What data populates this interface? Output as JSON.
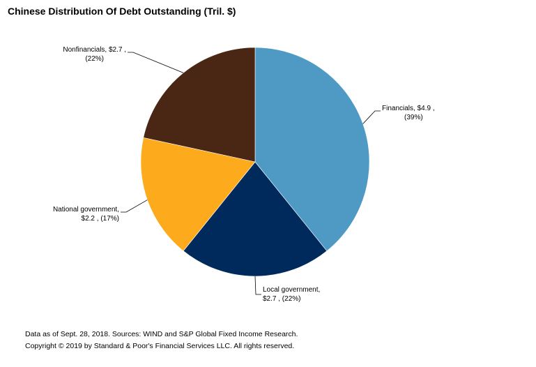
{
  "title": "Chinese Distribution Of Debt Outstanding (Tril. $)",
  "chart_data": {
    "type": "pie",
    "title": "Chinese Distribution Of Debt Outstanding (Tril. $)",
    "slices": [
      {
        "label": "Financials",
        "value": 4.9,
        "value_text": "$4.9",
        "percent": 39,
        "percent_text": "(39%)",
        "color": "#4f9ac4",
        "label_lines": [
          "Financials, $4.9 ,",
          "(39%)"
        ]
      },
      {
        "label": "Local government",
        "value": 2.7,
        "value_text": "$2.7",
        "percent": 22,
        "percent_text": "(22%)",
        "color": "#002a5c",
        "label_lines": [
          "Local government,",
          "$2.7 , (22%)"
        ]
      },
      {
        "label": "National government",
        "value": 2.2,
        "value_text": "$2.2",
        "percent": 17,
        "percent_text": "(17%)",
        "color": "#fdab1c",
        "label_lines": [
          "National government,",
          "$2.2 , (17%)"
        ]
      },
      {
        "label": "Nonfinancials",
        "value": 2.7,
        "value_text": "$2.7",
        "percent": 22,
        "percent_text": "(22%)",
        "color": "#4a2615",
        "label_lines": [
          "Nonfinancials, $2.7 ,",
          "(22%)"
        ]
      }
    ],
    "start_angle": "12 o'clock",
    "direction": "clockwise"
  },
  "footer": {
    "source": "Data as of Sept. 28, 2018. Sources: WIND and S&P Global Fixed Income Research.",
    "copyright": "Copyright © 2019 by Standard & Poor's Financial Services LLC. All rights reserved."
  }
}
